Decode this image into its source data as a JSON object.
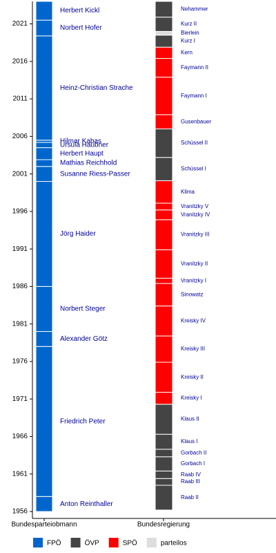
{
  "chart_data": {
    "type": "timeline",
    "ylim": [
      1956,
      2024
    ],
    "yticks": [
      1956,
      1961,
      1966,
      1971,
      1976,
      1981,
      1986,
      1991,
      1996,
      2001,
      2006,
      2011,
      2016,
      2021
    ],
    "parties": [
      {
        "name": "FPÖ",
        "color": "#0066cc"
      },
      {
        "name": "ÖVP",
        "color": "#444444"
      },
      {
        "name": "SPÖ",
        "color": "#ff0000"
      },
      {
        "name": "parteilos",
        "color": "#dddddd"
      }
    ],
    "columns": [
      {
        "label": "Bundesparteiobmann",
        "segments": [
          {
            "name": "Anton Reinthaller",
            "start": 1956,
            "end": 1958,
            "party": "FPÖ"
          },
          {
            "name": "Friedrich Peter",
            "start": 1958,
            "end": 1978,
            "party": "FPÖ"
          },
          {
            "name": "Alexander Götz",
            "start": 1978,
            "end": 1980,
            "party": "FPÖ"
          },
          {
            "name": "Norbert Steger",
            "start": 1980,
            "end": 1986,
            "party": "FPÖ"
          },
          {
            "name": "Jörg Haider",
            "start": 1986,
            "end": 2000,
            "party": "FPÖ"
          },
          {
            "name": "Susanne Riess-Passer",
            "start": 2000,
            "end": 2002,
            "party": "FPÖ"
          },
          {
            "name": "Mathias Reichhold",
            "start": 2002,
            "end": 2002.9,
            "party": "FPÖ"
          },
          {
            "name": "Herbert Haupt",
            "start": 2002.9,
            "end": 2004.5,
            "party": "FPÖ"
          },
          {
            "name": "Ursula Haubner",
            "start": 2004.5,
            "end": 2005.2,
            "party": "FPÖ"
          },
          {
            "name": "Hilmar Kabas",
            "start": 2005.2,
            "end": 2005.5,
            "party": "FPÖ"
          },
          {
            "name": "Heinz-Christian Strache",
            "start": 2005.5,
            "end": 2019.4,
            "party": "FPÖ"
          },
          {
            "name": "Norbert Hofer",
            "start": 2019.4,
            "end": 2021.5,
            "party": "FPÖ"
          },
          {
            "name": "Herbert Kickl",
            "start": 2021.5,
            "end": 2024,
            "party": "FPÖ"
          }
        ]
      },
      {
        "label": "Bundesregierung",
        "segments": [
          {
            "name": "Raab II",
            "start": 1956.2,
            "end": 1959.5,
            "party": "ÖVP"
          },
          {
            "name": "Raab III",
            "start": 1959.5,
            "end": 1960.4,
            "party": "ÖVP"
          },
          {
            "name": "Raab IV",
            "start": 1960.4,
            "end": 1961.4,
            "party": "ÖVP"
          },
          {
            "name": "Gorbach I",
            "start": 1961.4,
            "end": 1963.3,
            "party": "ÖVP"
          },
          {
            "name": "Gorbach II",
            "start": 1963.3,
            "end": 1964.3,
            "party": "ÖVP"
          },
          {
            "name": "Klaus I",
            "start": 1964.3,
            "end": 1966.3,
            "party": "ÖVP"
          },
          {
            "name": "Klaus II",
            "start": 1966.3,
            "end": 1970.3,
            "party": "ÖVP"
          },
          {
            "name": "Kreisky I",
            "start": 1970.3,
            "end": 1971.9,
            "party": "SPÖ"
          },
          {
            "name": "Kreisky II",
            "start": 1971.9,
            "end": 1975.9,
            "party": "SPÖ"
          },
          {
            "name": "Kreisky III",
            "start": 1975.9,
            "end": 1979.4,
            "party": "SPÖ"
          },
          {
            "name": "Kreisky IV",
            "start": 1979.4,
            "end": 1983.4,
            "party": "SPÖ"
          },
          {
            "name": "Sinowatz",
            "start": 1983.4,
            "end": 1986.4,
            "party": "SPÖ"
          },
          {
            "name": "Vranitzky I",
            "start": 1986.4,
            "end": 1987.1,
            "party": "SPÖ"
          },
          {
            "name": "Vranitzky II",
            "start": 1987.1,
            "end": 1990.9,
            "party": "SPÖ"
          },
          {
            "name": "Vranitzky III",
            "start": 1990.9,
            "end": 1994.9,
            "party": "SPÖ"
          },
          {
            "name": "Vranitzky IV",
            "start": 1994.9,
            "end": 1996.2,
            "party": "SPÖ"
          },
          {
            "name": "Vranitzky V",
            "start": 1996.2,
            "end": 1997.1,
            "party": "SPÖ"
          },
          {
            "name": "Klima",
            "start": 1997.1,
            "end": 2000.1,
            "party": "SPÖ"
          },
          {
            "name": "Schüssel I",
            "start": 2000.1,
            "end": 2003.2,
            "party": "ÖVP"
          },
          {
            "name": "Schüssel II",
            "start": 2003.2,
            "end": 2007.0,
            "party": "ÖVP"
          },
          {
            "name": "Gusenbauer",
            "start": 2007.0,
            "end": 2008.9,
            "party": "SPÖ"
          },
          {
            "name": "Faymann I",
            "start": 2008.9,
            "end": 2013.9,
            "party": "SPÖ"
          },
          {
            "name": "Faymann II",
            "start": 2013.9,
            "end": 2016.4,
            "party": "SPÖ"
          },
          {
            "name": "Kern",
            "start": 2016.4,
            "end": 2017.9,
            "party": "SPÖ"
          },
          {
            "name": "Kurz I",
            "start": 2017.9,
            "end": 2019.5,
            "party": "ÖVP"
          },
          {
            "name": "Bierlein",
            "start": 2019.5,
            "end": 2020.0,
            "party": "parteilos"
          },
          {
            "name": "Kurz II",
            "start": 2020.0,
            "end": 2021.9,
            "party": "ÖVP"
          },
          {
            "name": "Nehammer",
            "start": 2021.9,
            "end": 2024,
            "party": "ÖVP"
          }
        ]
      }
    ]
  }
}
